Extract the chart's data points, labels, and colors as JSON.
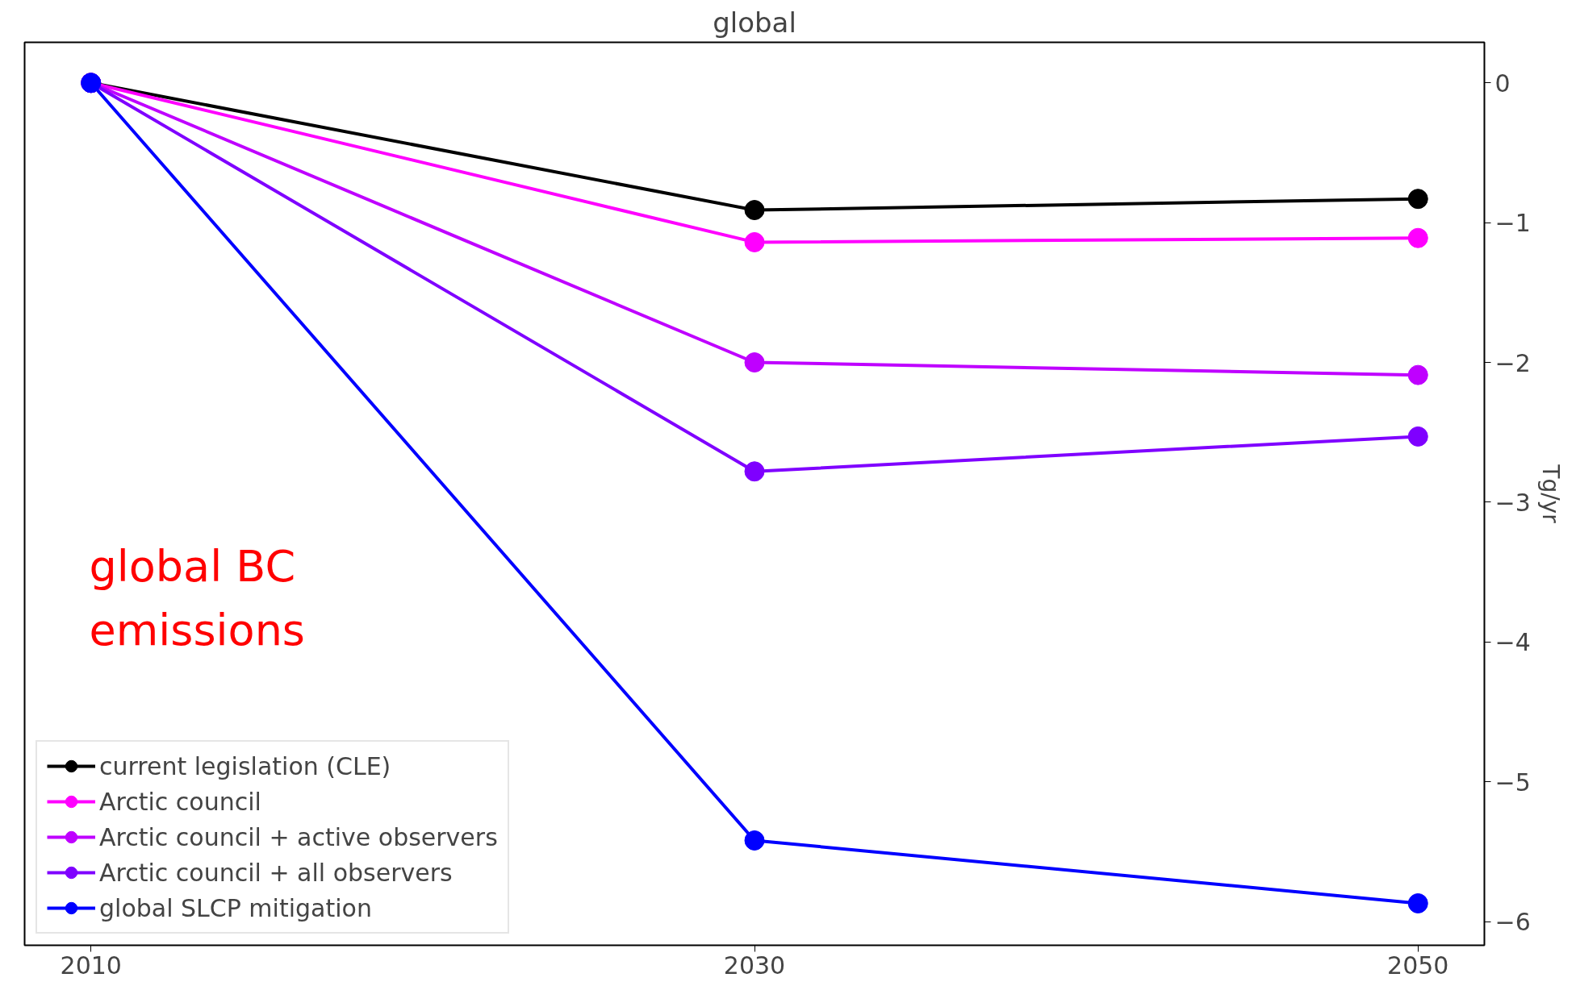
{
  "chart_data": {
    "type": "line",
    "title": "global",
    "y2label": "Tg/yr",
    "x": [
      2010,
      2030,
      2050
    ],
    "xlim": [
      2008,
      2052
    ],
    "xticks": [
      2010,
      2030,
      2050
    ],
    "y2lim": [
      -6.17,
      0.29
    ],
    "y2ticks": [
      {
        "value": 0,
        "label": "0"
      },
      {
        "value": -1,
        "label": "−1"
      },
      {
        "value": -2,
        "label": "−2"
      },
      {
        "value": -3,
        "label": "−3"
      },
      {
        "value": -4,
        "label": "−4"
      },
      {
        "value": -5,
        "label": "−5"
      },
      {
        "value": -6,
        "label": "−6"
      }
    ],
    "marker": "circle",
    "line_style": "solid",
    "legend": "bottom left",
    "grid": false,
    "annotations": [
      "global BC\nemissions"
    ],
    "series": [
      {
        "name": "current legislation (CLE)",
        "color": "#000000",
        "axis": "y2",
        "values": [
          0,
          -0.91,
          -0.83
        ]
      },
      {
        "name": "Arctic council",
        "color": "#ff00ff",
        "axis": "y2",
        "values": [
          0,
          -1.14,
          -1.11
        ]
      },
      {
        "name": "Arctic council + active observers",
        "color": "#bf00ff",
        "axis": "y2",
        "values": [
          0,
          -2.0,
          -2.09
        ]
      },
      {
        "name": "Arctic council + all observers",
        "color": "#7f00ff",
        "axis": "y2",
        "values": [
          0,
          -2.78,
          -2.53
        ]
      },
      {
        "name": "global SLCP mitigation",
        "color": "#0000ff",
        "axis": "y2",
        "values": [
          0,
          -5.42,
          -5.87
        ]
      }
    ]
  }
}
